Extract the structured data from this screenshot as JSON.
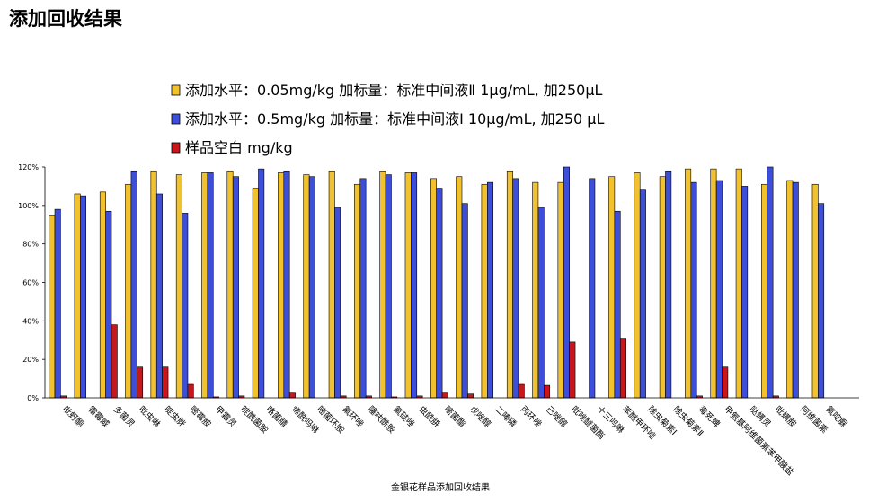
{
  "chart_data": {
    "type": "bar",
    "title": "添加回收结果",
    "xlabel": "金银花样品添加回收结果",
    "ylabel": "",
    "ylim": [
      0,
      120
    ],
    "ytick_values": [
      0,
      20,
      40,
      60,
      80,
      100,
      120
    ],
    "yticks": [
      "0%",
      "20%",
      "40%",
      "60%",
      "80%",
      "100%",
      "120%"
    ],
    "legend_position": "top",
    "grid": false,
    "categories": [
      "吡蚜酮",
      "霜霉威",
      "多菌灵",
      "吡虫啉",
      "啶虫脒",
      "嘧霉胺",
      "甲霜灵",
      "啶酰菌胺",
      "咯菌腈",
      "烯酰吗啉",
      "嘧菌环胺",
      "氟环唑",
      "噻呋酰胺",
      "氟硅唑",
      "虫酰肼",
      "嘧菌酯",
      "戊唑醇",
      "二嗪磷",
      "丙环唑",
      "己唑醇",
      "吡唑醚菌酯",
      "十三吗啉",
      "苯醚甲环唑",
      "除虫菊素Ⅰ",
      "除虫菊素Ⅱ",
      "毒死蜱",
      "甲氨基阿维菌素苯甲酸盐",
      "哒螨灵",
      "吡螨胺",
      "阿维菌素",
      "氟啶脲"
    ],
    "series": [
      {
        "name": "添加水平：0.05mg/kg 加标量：标准中间液Ⅱ 1μg/mL, 加250μL",
        "color": "#F2C12E",
        "values": [
          95,
          106,
          107,
          111,
          118,
          116,
          117,
          118,
          109,
          117,
          116,
          118,
          111,
          118,
          117,
          114,
          115,
          111,
          118,
          112,
          112,
          null,
          115,
          117,
          115,
          119,
          119,
          119,
          111,
          113,
          111
        ]
      },
      {
        "name": "添加水平：0.5mg/kg 加标量：标准中间液Ⅰ 10μg/mL, 加250 μL",
        "color": "#3D4FD8",
        "values": [
          98,
          105,
          97,
          118,
          106,
          96,
          117,
          115,
          119,
          118,
          115,
          99,
          114,
          116,
          117,
          109,
          101,
          112,
          114,
          99,
          120,
          114,
          97,
          108,
          118,
          112,
          113,
          110,
          120,
          112,
          101
        ]
      },
      {
        "name": "样品空白 mg/kg",
        "color": "#C8161D",
        "values": [
          1,
          0,
          38,
          16,
          16,
          7,
          0.5,
          1,
          0,
          2.5,
          0,
          1,
          1,
          0.5,
          1,
          2.5,
          2,
          0,
          7,
          6.5,
          29,
          0,
          31,
          0,
          0,
          1,
          16,
          0,
          1,
          0,
          0
        ]
      }
    ]
  }
}
